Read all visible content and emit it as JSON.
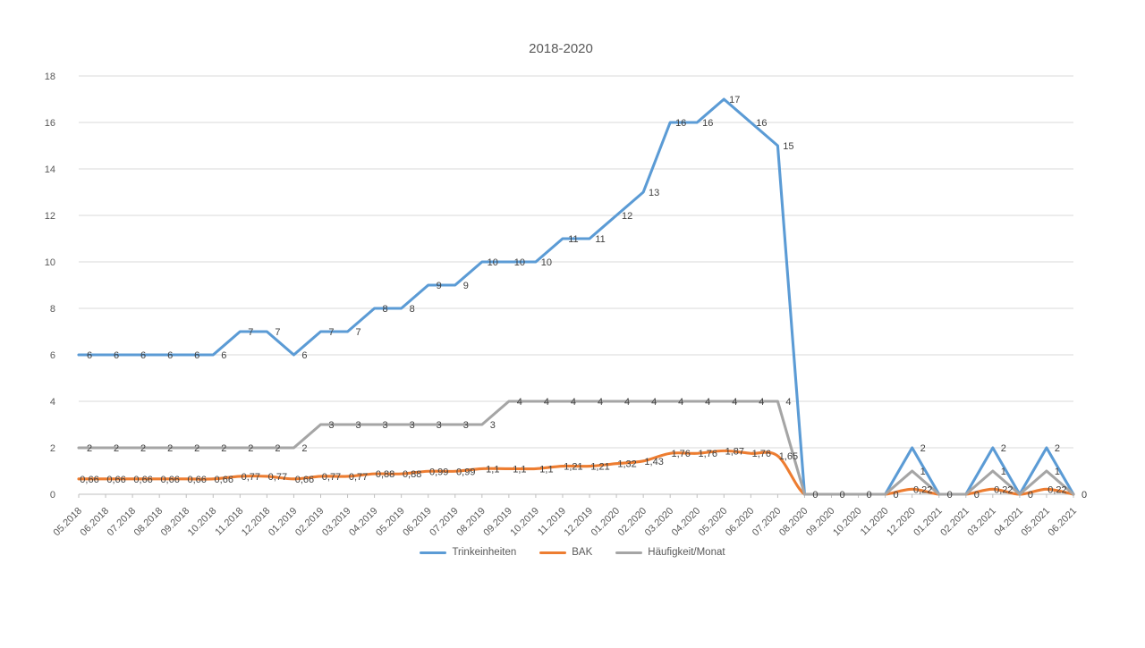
{
  "chart_data": {
    "type": "line",
    "title": "2018-2020",
    "x": [
      "05.2018",
      "06.2018",
      "07.2018",
      "08.2018",
      "09.2018",
      "10.2018",
      "11.2018",
      "12.2018",
      "01.2019",
      "02.2019",
      "03.2019",
      "04.2019",
      "05.2019",
      "06.2019",
      "07.2019",
      "08.2019",
      "09.2019",
      "10.2019",
      "11.2019",
      "12.2019",
      "01.2020",
      "02.2020",
      "03.2020",
      "04.2020",
      "05.2020",
      "06.2020",
      "07.2020",
      "08.2020",
      "09.2020",
      "10.2020",
      "11.2020",
      "12.2020",
      "01.2021",
      "02.2021",
      "03.2021",
      "04.2021",
      "05.2021",
      "06.2021"
    ],
    "ylim": [
      0,
      18
    ],
    "ytick_step": 2,
    "grid": true,
    "legend_position": "bottom",
    "series": [
      {
        "name": "Trinkeinheiten",
        "color": "#5B9BD5",
        "smooth": false,
        "values": [
          6,
          6,
          6,
          6,
          6,
          6,
          7,
          7,
          6,
          7,
          7,
          8,
          8,
          9,
          9,
          10,
          10,
          10,
          11,
          11,
          12,
          13,
          16,
          16,
          17,
          16,
          15,
          0,
          0,
          0,
          0,
          2,
          0,
          0,
          2,
          0,
          2,
          0
        ],
        "labels": [
          "6",
          "6",
          "6",
          "6",
          "6",
          "6",
          "7",
          "7",
          "6",
          "7",
          "7",
          "8",
          "8",
          "9",
          "9",
          "10",
          "10",
          "10",
          "11",
          "11",
          "12",
          "13",
          "16",
          "16",
          "17",
          "16",
          "15",
          "0",
          "0",
          "0",
          "0",
          "2",
          "0",
          "0",
          "2",
          "0",
          "2",
          "0"
        ]
      },
      {
        "name": "BAK",
        "color": "#ED7D31",
        "smooth": true,
        "values": [
          0.66,
          0.66,
          0.66,
          0.66,
          0.66,
          0.66,
          0.77,
          0.77,
          0.66,
          0.77,
          0.77,
          0.88,
          0.88,
          0.99,
          0.99,
          1.1,
          1.1,
          1.1,
          1.21,
          1.21,
          1.32,
          1.43,
          1.76,
          1.76,
          1.87,
          1.76,
          1.65,
          0,
          0,
          0,
          0,
          0.22,
          0,
          0,
          0.22,
          0,
          0.22,
          0
        ],
        "labels": [
          "0,66",
          "0,66",
          "0,66",
          "0,66",
          "0,66",
          "0,66",
          "0,77",
          "0,77",
          "0,66",
          "0,77",
          "0,77",
          "0,88",
          "0,88",
          "0,99",
          "0,99",
          "1,1",
          "1,1",
          "1,1",
          "1,21",
          "1,21",
          "1,32",
          "1,43",
          "1,76",
          "1,76",
          "1,87",
          "1,76",
          "1,65",
          "",
          "",
          "",
          "",
          "0,22",
          "",
          "",
          "0,22",
          "",
          "0,22",
          ""
        ]
      },
      {
        "name": "Häufigkeit/Monat",
        "color": "#A5A5A5",
        "smooth": false,
        "values": [
          2,
          2,
          2,
          2,
          2,
          2,
          2,
          2,
          2,
          3,
          3,
          3,
          3,
          3,
          3,
          3,
          4,
          4,
          4,
          4,
          4,
          4,
          4,
          4,
          4,
          4,
          4,
          0,
          0,
          0,
          0,
          1,
          0,
          0,
          1,
          0,
          1,
          0
        ],
        "labels": [
          "2",
          "2",
          "2",
          "2",
          "2",
          "2",
          "2",
          "2",
          "2",
          "3",
          "3",
          "3",
          "3",
          "3",
          "3",
          "3",
          "4",
          "4",
          "4",
          "4",
          "4",
          "4",
          "4",
          "4",
          "4",
          "4",
          "4",
          "",
          "",
          "",
          "",
          "1",
          "",
          "",
          "1",
          "",
          "1",
          ""
        ]
      }
    ],
    "colors": {
      "background": "#FFFFFF",
      "gridline": "#D9D9D9",
      "axis_line": "#BFBFBF",
      "tick_label": "#595959",
      "data_label": "#404040",
      "title": "#595959"
    }
  }
}
